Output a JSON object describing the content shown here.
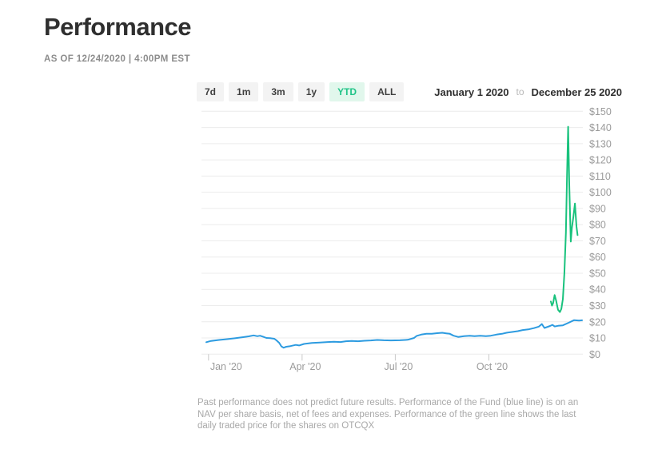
{
  "colors": {
    "accent_green": "#21C488",
    "accent_green_bg": "#E1F7EC",
    "title_text": "#2F2F2F",
    "muted_text": "#8C8C8C",
    "axis_text": "#9B9B9B",
    "gridline": "#ECECEC",
    "tick": "#C9C9C9",
    "button_bg": "#F3F3F3",
    "button_text": "#3F3F3F",
    "disclaimer_text": "#A8A8A8"
  },
  "header": {
    "title": "Performance",
    "as_of": "AS OF 12/24/2020 | 4:00PM EST"
  },
  "controls": {
    "range_buttons": [
      {
        "label": "7d",
        "active": false
      },
      {
        "label": "1m",
        "active": false
      },
      {
        "label": "3m",
        "active": false
      },
      {
        "label": "1y",
        "active": false
      },
      {
        "label": "YTD",
        "active": true
      },
      {
        "label": "ALL",
        "active": false
      }
    ],
    "date_range": {
      "start": "January 1 2020",
      "separator": "to",
      "end": "December 25 2020"
    }
  },
  "chart_data": {
    "type": "line",
    "title": "Performance",
    "x_axis": {
      "range_start": "January 1 2020",
      "range_end": "December 25 2020",
      "ticks": [
        {
          "label": "Jan '20",
          "f": 0.006
        },
        {
          "label": "Apr '20",
          "f": 0.255
        },
        {
          "label": "Jul '20",
          "f": 0.503
        },
        {
          "label": "Oct '20",
          "f": 0.752
        }
      ]
    },
    "y_axis": {
      "min": 0,
      "max": 150,
      "step": 10,
      "unit": "$",
      "labels": [
        "$0",
        "$10",
        "$20",
        "$30",
        "$40",
        "$50",
        "$60",
        "$70",
        "$80",
        "$90",
        "$100",
        "$110",
        "$120",
        "$130",
        "$140",
        "$150"
      ]
    },
    "grid": true,
    "legend": "none",
    "series": [
      {
        "name": "Fund NAV per share (blue line)",
        "color": "#2D9BE0",
        "points": [
          [
            0.0,
            7.4
          ],
          [
            0.013,
            8.2
          ],
          [
            0.034,
            8.8
          ],
          [
            0.055,
            9.3
          ],
          [
            0.076,
            9.8
          ],
          [
            0.098,
            10.5
          ],
          [
            0.113,
            11.0
          ],
          [
            0.126,
            11.6
          ],
          [
            0.136,
            11.1
          ],
          [
            0.143,
            11.4
          ],
          [
            0.151,
            10.8
          ],
          [
            0.16,
            10.0
          ],
          [
            0.17,
            9.9
          ],
          [
            0.181,
            9.5
          ],
          [
            0.187,
            8.5
          ],
          [
            0.194,
            7.0
          ],
          [
            0.2,
            4.8
          ],
          [
            0.206,
            4.0
          ],
          [
            0.213,
            4.6
          ],
          [
            0.224,
            5.0
          ],
          [
            0.238,
            5.7
          ],
          [
            0.247,
            5.4
          ],
          [
            0.26,
            6.3
          ],
          [
            0.281,
            6.9
          ],
          [
            0.302,
            7.2
          ],
          [
            0.323,
            7.5
          ],
          [
            0.34,
            7.7
          ],
          [
            0.357,
            7.5
          ],
          [
            0.372,
            8.0
          ],
          [
            0.387,
            8.2
          ],
          [
            0.404,
            8.0
          ],
          [
            0.421,
            8.3
          ],
          [
            0.438,
            8.5
          ],
          [
            0.455,
            8.8
          ],
          [
            0.472,
            8.6
          ],
          [
            0.491,
            8.5
          ],
          [
            0.515,
            8.6
          ],
          [
            0.536,
            8.9
          ],
          [
            0.553,
            10.0
          ],
          [
            0.56,
            11.3
          ],
          [
            0.572,
            12.1
          ],
          [
            0.586,
            12.6
          ],
          [
            0.6,
            12.6
          ],
          [
            0.615,
            13.0
          ],
          [
            0.628,
            13.2
          ],
          [
            0.638,
            12.9
          ],
          [
            0.648,
            12.6
          ],
          [
            0.658,
            11.4
          ],
          [
            0.671,
            10.6
          ],
          [
            0.686,
            11.1
          ],
          [
            0.701,
            11.4
          ],
          [
            0.714,
            11.1
          ],
          [
            0.729,
            11.4
          ],
          [
            0.744,
            11.1
          ],
          [
            0.757,
            11.4
          ],
          [
            0.772,
            12.1
          ],
          [
            0.787,
            12.6
          ],
          [
            0.799,
            13.2
          ],
          [
            0.814,
            13.7
          ],
          [
            0.829,
            14.2
          ],
          [
            0.842,
            14.9
          ],
          [
            0.857,
            15.3
          ],
          [
            0.872,
            16.1
          ],
          [
            0.885,
            17.0
          ],
          [
            0.893,
            18.6
          ],
          [
            0.9,
            16.2
          ],
          [
            0.915,
            17.4
          ],
          [
            0.921,
            18.1
          ],
          [
            0.927,
            17.1
          ],
          [
            0.936,
            17.5
          ],
          [
            0.949,
            17.8
          ],
          [
            0.964,
            19.4
          ],
          [
            0.979,
            21.0
          ],
          [
            0.992,
            20.7
          ],
          [
            1.0,
            20.9
          ]
        ]
      },
      {
        "name": "OTCQX last daily traded price (green line)",
        "color": "#19C27D",
        "points": [
          [
            0.917,
            32.5
          ],
          [
            0.92,
            30.0
          ],
          [
            0.923,
            31.5
          ],
          [
            0.927,
            36.5
          ],
          [
            0.931,
            33.0
          ],
          [
            0.936,
            27.5
          ],
          [
            0.941,
            26.0
          ],
          [
            0.945,
            28.0
          ],
          [
            0.949,
            34.0
          ],
          [
            0.953,
            50.0
          ],
          [
            0.957,
            75.0
          ],
          [
            0.96,
            110.0
          ],
          [
            0.963,
            140.5
          ],
          [
            0.966,
            105.0
          ],
          [
            0.97,
            69.5
          ],
          [
            0.973,
            78.0
          ],
          [
            0.977,
            85.0
          ],
          [
            0.981,
            93.0
          ],
          [
            0.985,
            79.0
          ],
          [
            0.988,
            73.5
          ]
        ]
      }
    ]
  },
  "footer": {
    "disclaimer": "Past performance does not predict future results. Performance of the Fund (blue line) is on an\nNAV per share basis, net of fees and expenses. Performance of the green line shows the last\ndaily traded price for the shares on OTCQX"
  }
}
